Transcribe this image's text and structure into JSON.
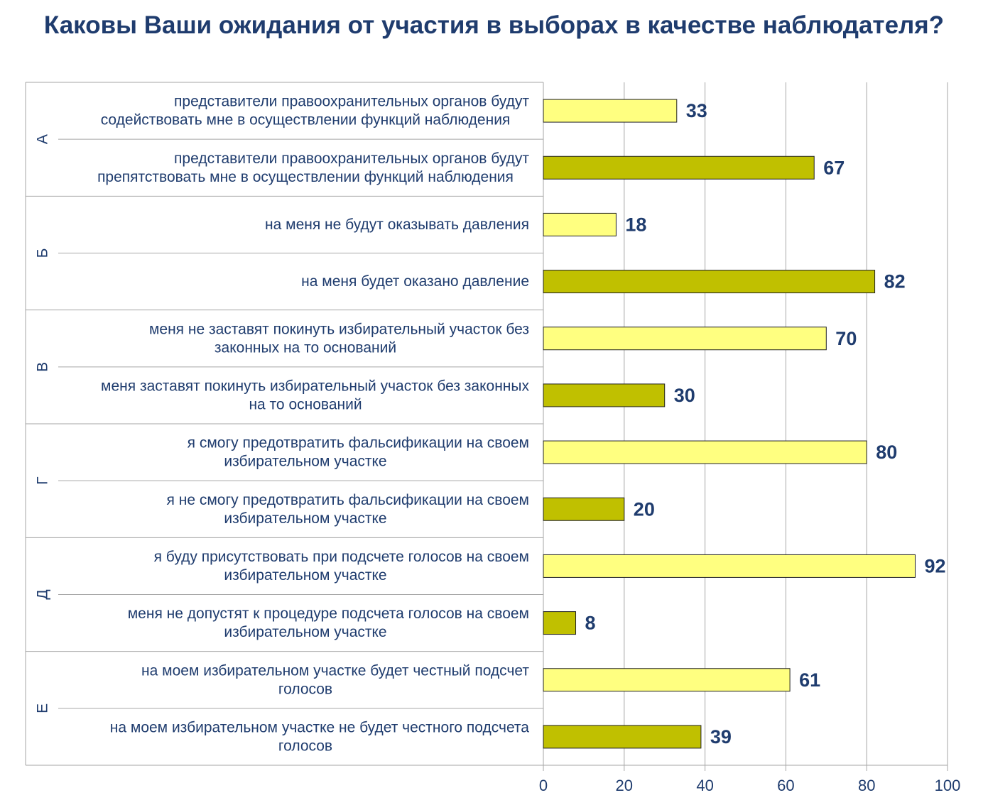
{
  "chart_data": {
    "type": "bar",
    "orientation": "horizontal",
    "title": "Каковы Ваши ожидания от участия в выборах в качестве наблюдателя?",
    "xlim": [
      0,
      100
    ],
    "xticks": [
      0,
      20,
      40,
      60,
      80,
      100
    ],
    "grid": true,
    "colors": {
      "positive": "#ffff80",
      "negative": "#c0c000",
      "grid": "#a6a6a6",
      "text": "#1f3c6e"
    },
    "groups": [
      {
        "name": "А",
        "items": [
          {
            "label": [
              "представители правоохранительных органов будут",
              "содействовать мне в осуществлении функций наблюдения"
            ],
            "value": 33,
            "kind": "positive"
          },
          {
            "label": [
              "представители правоохранительных органов будут",
              "препятствовать мне в осуществлении функций наблюдения"
            ],
            "value": 67,
            "kind": "negative"
          }
        ]
      },
      {
        "name": "Б",
        "items": [
          {
            "label": [
              "на меня не будут оказывать давления"
            ],
            "value": 18,
            "kind": "positive"
          },
          {
            "label": [
              "на меня будет оказано давление"
            ],
            "value": 82,
            "kind": "negative"
          }
        ]
      },
      {
        "name": "В",
        "items": [
          {
            "label": [
              "меня не заставят покинуть избирательный участок без",
              "законных на то оснований"
            ],
            "value": 70,
            "kind": "positive"
          },
          {
            "label": [
              "меня заставят покинуть избирательный участок без законных",
              "на то оснований"
            ],
            "value": 30,
            "kind": "negative"
          }
        ]
      },
      {
        "name": "Г",
        "items": [
          {
            "label": [
              "я смогу предотвратить фальсификации на своем",
              "избирательном участке"
            ],
            "value": 80,
            "kind": "positive"
          },
          {
            "label": [
              "я не смогу предотвратить фальсификации на своем",
              "избирательном участке"
            ],
            "value": 20,
            "kind": "negative"
          }
        ]
      },
      {
        "name": "Д",
        "items": [
          {
            "label": [
              "я буду присутствовать при подсчете голосов на своем",
              "избирательном участке"
            ],
            "value": 92,
            "kind": "positive"
          },
          {
            "label": [
              "меня не допустят к процедуре подсчета голосов на своем",
              "избирательном участке"
            ],
            "value": 8,
            "kind": "negative"
          }
        ]
      },
      {
        "name": "Е",
        "items": [
          {
            "label": [
              "на моем избирательном участке будет честный подсчет",
              "голосов"
            ],
            "value": 61,
            "kind": "positive"
          },
          {
            "label": [
              "на моем избирательном участке не будет честного подсчета",
              "голосов"
            ],
            "value": 39,
            "kind": "negative"
          }
        ]
      }
    ]
  }
}
